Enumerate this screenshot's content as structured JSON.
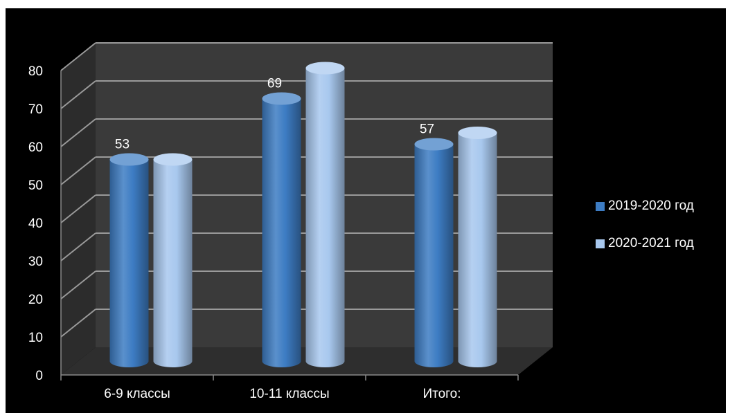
{
  "chart_data": {
    "type": "bar",
    "style": "3d-cylinder",
    "categories": [
      "6-9 классы",
      "10-11 классы",
      "Итого:"
    ],
    "series": [
      {
        "name": "2019-2020 год",
        "values": [
          53,
          69,
          57
        ],
        "color": "#3d7cc3",
        "show_labels": true
      },
      {
        "name": "2020-2021 год",
        "values": [
          53,
          77,
          60
        ],
        "color": "#a8c8ee",
        "show_labels": false
      }
    ],
    "y_ticks": [
      "0",
      "10",
      "20",
      "30",
      "40",
      "50",
      "60",
      "70",
      "80"
    ],
    "ylim": [
      0,
      80
    ],
    "grid": true,
    "legend_position": "right",
    "background": "#000000",
    "wall_color": "#3a3a3a",
    "floor_color": "#2e2e2e",
    "text_color": "#ffffff"
  }
}
